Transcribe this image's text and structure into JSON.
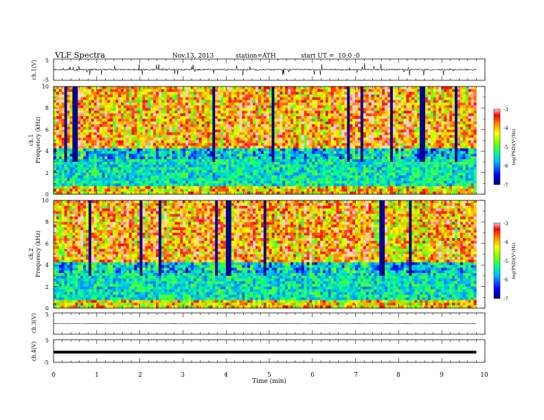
{
  "header": {
    "title": "VLF  Spectra",
    "date": "Nov.13, 2013",
    "station": "station=ATH",
    "start_label": "start  UT  =",
    "start_time": "10:0  :0"
  },
  "chart_data": [
    {
      "type": "line",
      "panel": "ch1-waveform",
      "ylabel": "ch.1(V)",
      "ylim": [
        -5,
        5
      ],
      "yticks": [
        "5",
        "-5"
      ],
      "baseline_v": 0.0,
      "noise_v": 0.6,
      "spike_v": 3.0
    },
    {
      "type": "heatmap",
      "panel": "ch1-spectrogram",
      "ylabel_line1": "ch.1",
      "ylabel_line2": "Frequency  (kHz)",
      "ylim": [
        0,
        10
      ],
      "yticks": [
        "0",
        "2",
        "4",
        "6",
        "8",
        "10"
      ],
      "colorbar_label": "log(PSD)(V²/Hz)",
      "colorbar_ticks": [
        "-3",
        "-4",
        "-5",
        "-6",
        "-7"
      ],
      "clim": [
        -7,
        -3
      ]
    },
    {
      "type": "heatmap",
      "panel": "ch2-spectrogram",
      "ylabel_line1": "ch.2",
      "ylabel_line2": "Frequency  (kHz)",
      "ylim": [
        0,
        10
      ],
      "yticks": [
        "0",
        "2",
        "4",
        "6",
        "8",
        "10"
      ],
      "colorbar_label": "log(PSD)(V²/Hz)",
      "colorbar_ticks": [
        "-3",
        "-4",
        "-5",
        "-6",
        "-7"
      ],
      "clim": [
        -7,
        -3
      ]
    },
    {
      "type": "line",
      "panel": "ch3-waveform",
      "ylabel": "ch.3(V)",
      "ylim": [
        -5,
        5
      ],
      "yticks": [
        "5"
      ],
      "baseline_v": 0.0
    },
    {
      "type": "line",
      "panel": "ch4-waveform",
      "ylabel": "ch.4(V)",
      "ylim": [
        -5,
        5
      ],
      "yticks": [
        "5",
        "-5"
      ],
      "baseline_v": -0.5
    }
  ],
  "xaxis": {
    "label": "Time  (min)",
    "ticks": [
      "0",
      "1",
      "2",
      "3",
      "4",
      "5",
      "6",
      "7",
      "8",
      "9",
      "10"
    ],
    "xlim": [
      0,
      10
    ],
    "data_end_min": 9.8
  }
}
